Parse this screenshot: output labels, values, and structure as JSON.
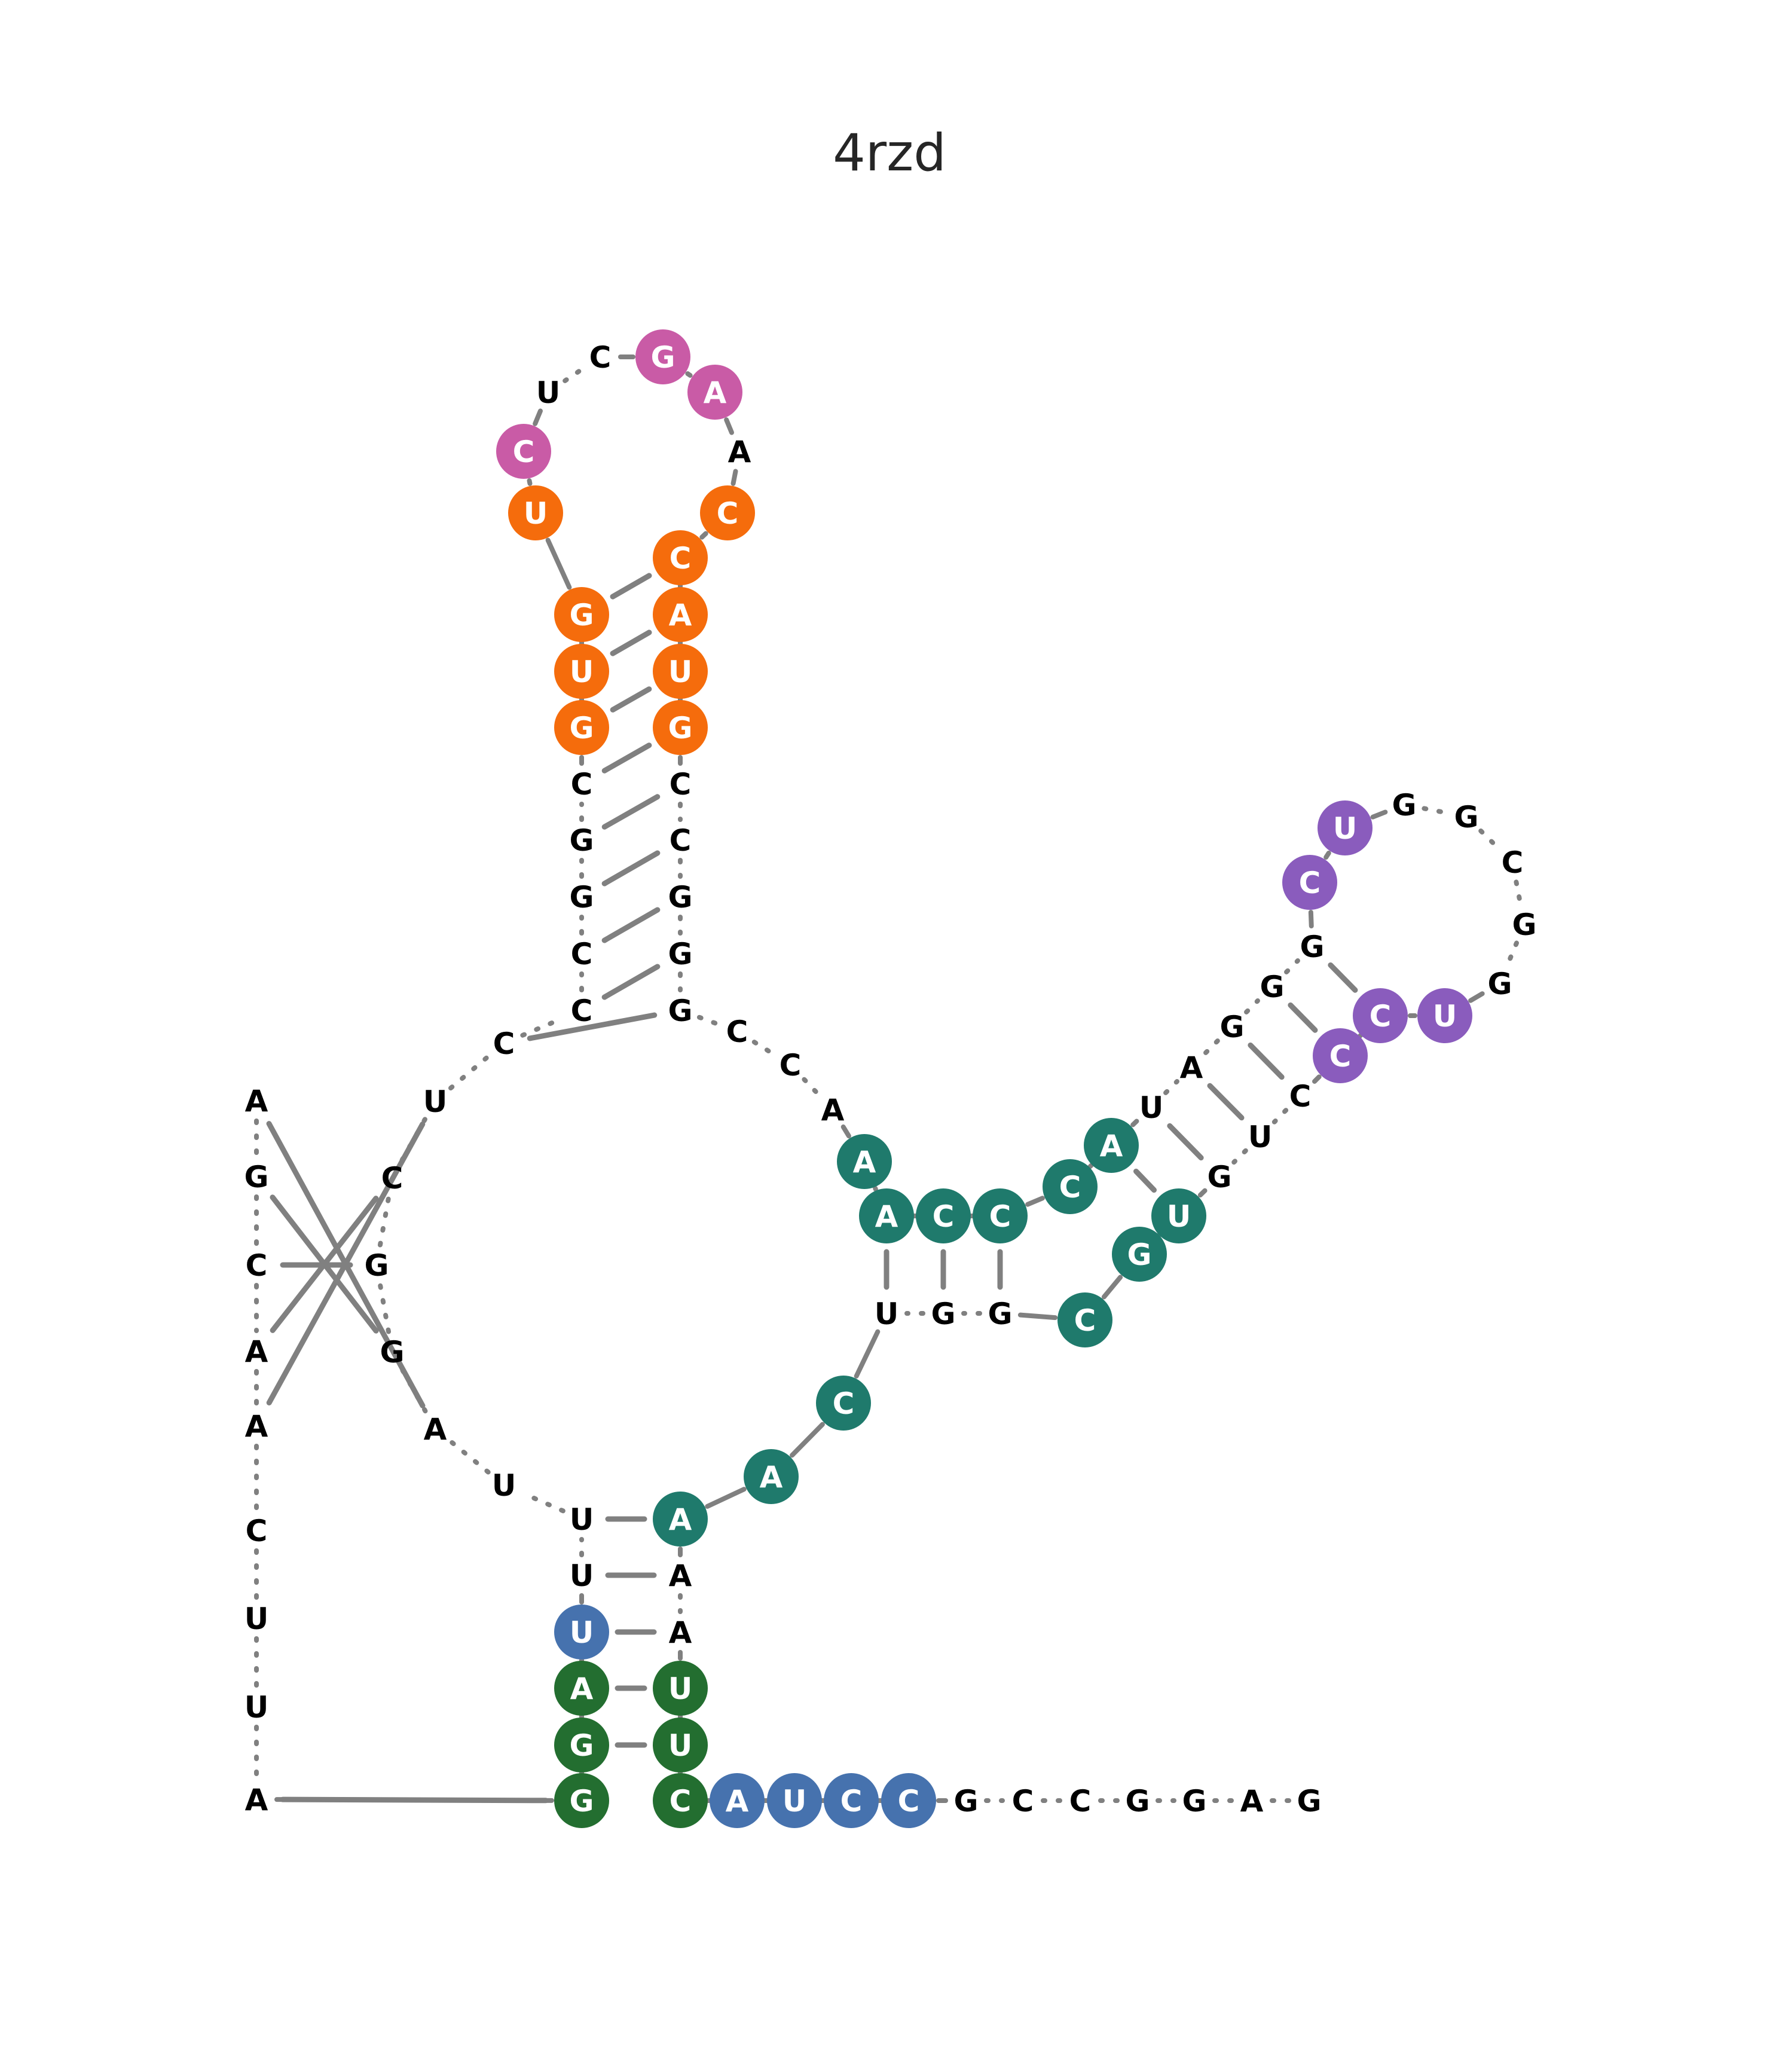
{
  "title": "4rzd",
  "colors": {
    "backbone": "#808080",
    "pair": "#808080",
    "label_plain": "#000000",
    "label_on_circle": "#ffffff"
  },
  "nucleotides": [
    {
      "id": 1,
      "base": "A",
      "color": null
    },
    {
      "id": 2,
      "base": "G",
      "color": null
    },
    {
      "id": 3,
      "base": "C",
      "color": null
    },
    {
      "id": 4,
      "base": "A",
      "color": null
    },
    {
      "id": 5,
      "base": "A",
      "color": null
    },
    {
      "id": 6,
      "base": "C",
      "color": null
    },
    {
      "id": 7,
      "base": "U",
      "color": null
    },
    {
      "id": 8,
      "base": "U",
      "color": null
    },
    {
      "id": 9,
      "base": "A",
      "color": null
    },
    {
      "id": 10,
      "base": "G",
      "color": "#236e30"
    },
    {
      "id": 11,
      "base": "G",
      "color": "#236e30"
    },
    {
      "id": 12,
      "base": "A",
      "color": "#236e30"
    },
    {
      "id": 13,
      "base": "U",
      "color": "#4672ae"
    },
    {
      "id": 14,
      "base": "U",
      "color": null
    },
    {
      "id": 15,
      "base": "U",
      "color": null
    },
    {
      "id": 16,
      "base": "U",
      "color": null
    },
    {
      "id": 17,
      "base": "A",
      "color": null
    },
    {
      "id": 18,
      "base": "G",
      "color": null
    },
    {
      "id": 19,
      "base": "G",
      "color": null
    },
    {
      "id": 20,
      "base": "C",
      "color": null
    },
    {
      "id": 21,
      "base": "U",
      "color": null
    },
    {
      "id": 22,
      "base": "C",
      "color": null
    },
    {
      "id": 23,
      "base": "C",
      "color": null
    },
    {
      "id": 24,
      "base": "C",
      "color": null
    },
    {
      "id": 25,
      "base": "G",
      "color": null
    },
    {
      "id": 26,
      "base": "G",
      "color": null
    },
    {
      "id": 27,
      "base": "C",
      "color": null
    },
    {
      "id": 28,
      "base": "G",
      "color": "#f56c0c"
    },
    {
      "id": 29,
      "base": "U",
      "color": "#f56c0c"
    },
    {
      "id": 30,
      "base": "G",
      "color": "#f56c0c"
    },
    {
      "id": 31,
      "base": "U",
      "color": "#f56c0c"
    },
    {
      "id": 32,
      "base": "C",
      "color": "#c95ba6"
    },
    {
      "id": 33,
      "base": "U",
      "color": null
    },
    {
      "id": 34,
      "base": "C",
      "color": null
    },
    {
      "id": 35,
      "base": "G",
      "color": "#c95ba6"
    },
    {
      "id": 36,
      "base": "A",
      "color": "#c95ba6"
    },
    {
      "id": 37,
      "base": "A",
      "color": null
    },
    {
      "id": 38,
      "base": "C",
      "color": "#f56c0c"
    },
    {
      "id": 39,
      "base": "C",
      "color": "#f56c0c"
    },
    {
      "id": 40,
      "base": "A",
      "color": "#f56c0c"
    },
    {
      "id": 41,
      "base": "U",
      "color": "#f56c0c"
    },
    {
      "id": 42,
      "base": "G",
      "color": "#f56c0c"
    },
    {
      "id": 43,
      "base": "C",
      "color": null
    },
    {
      "id": 44,
      "base": "C",
      "color": null
    },
    {
      "id": 45,
      "base": "G",
      "color": null
    },
    {
      "id": 46,
      "base": "G",
      "color": null
    },
    {
      "id": 47,
      "base": "G",
      "color": null
    },
    {
      "id": 48,
      "base": "C",
      "color": null
    },
    {
      "id": 49,
      "base": "C",
      "color": null
    },
    {
      "id": 50,
      "base": "A",
      "color": null
    },
    {
      "id": 51,
      "base": "A",
      "color": "#1f7a6c"
    },
    {
      "id": 52,
      "base": "A",
      "color": "#1f7a6c"
    },
    {
      "id": 53,
      "base": "C",
      "color": "#1f7a6c"
    },
    {
      "id": 54,
      "base": "C",
      "color": "#1f7a6c"
    },
    {
      "id": 55,
      "base": "C",
      "color": "#1f7a6c"
    },
    {
      "id": 56,
      "base": "A",
      "color": "#1f7a6c"
    },
    {
      "id": 57,
      "base": "U",
      "color": null
    },
    {
      "id": 58,
      "base": "A",
      "color": null
    },
    {
      "id": 59,
      "base": "G",
      "color": null
    },
    {
      "id": 60,
      "base": "G",
      "color": null
    },
    {
      "id": 61,
      "base": "G",
      "color": null
    },
    {
      "id": 62,
      "base": "C",
      "color": "#8a5cbd"
    },
    {
      "id": 63,
      "base": "U",
      "color": "#8a5cbd"
    },
    {
      "id": 64,
      "base": "G",
      "color": null
    },
    {
      "id": 65,
      "base": "G",
      "color": null
    },
    {
      "id": 66,
      "base": "C",
      "color": null
    },
    {
      "id": 67,
      "base": "G",
      "color": null
    },
    {
      "id": 68,
      "base": "G",
      "color": null
    },
    {
      "id": 69,
      "base": "U",
      "color": "#8a5cbd"
    },
    {
      "id": 70,
      "base": "C",
      "color": "#8a5cbd"
    },
    {
      "id": 71,
      "base": "C",
      "color": "#8a5cbd"
    },
    {
      "id": 72,
      "base": "C",
      "color": null
    },
    {
      "id": 73,
      "base": "U",
      "color": null
    },
    {
      "id": 74,
      "base": "G",
      "color": null
    },
    {
      "id": 75,
      "base": "U",
      "color": "#1f7a6c"
    },
    {
      "id": 76,
      "base": "G",
      "color": "#1f7a6c"
    },
    {
      "id": 77,
      "base": "C",
      "color": "#1f7a6c"
    },
    {
      "id": 78,
      "base": "G",
      "color": null
    },
    {
      "id": 79,
      "base": "G",
      "color": null
    },
    {
      "id": 80,
      "base": "U",
      "color": null
    },
    {
      "id": 81,
      "base": "C",
      "color": "#1f7a6c"
    },
    {
      "id": 82,
      "base": "A",
      "color": "#1f7a6c"
    },
    {
      "id": 83,
      "base": "A",
      "color": "#1f7a6c"
    },
    {
      "id": 84,
      "base": "A",
      "color": null
    },
    {
      "id": 85,
      "base": "A",
      "color": null
    },
    {
      "id": 86,
      "base": "U",
      "color": "#236e30"
    },
    {
      "id": 87,
      "base": "U",
      "color": "#236e30"
    },
    {
      "id": 88,
      "base": "C",
      "color": "#236e30"
    },
    {
      "id": 89,
      "base": "A",
      "color": "#4672ae"
    },
    {
      "id": 90,
      "base": "U",
      "color": "#4672ae"
    },
    {
      "id": 91,
      "base": "C",
      "color": "#4672ae"
    },
    {
      "id": 92,
      "base": "C",
      "color": "#4672ae"
    },
    {
      "id": 93,
      "base": "G",
      "color": null
    },
    {
      "id": 94,
      "base": "C",
      "color": null
    },
    {
      "id": 95,
      "base": "C",
      "color": null
    },
    {
      "id": 96,
      "base": "G",
      "color": null
    },
    {
      "id": 97,
      "base": "G",
      "color": null
    },
    {
      "id": 98,
      "base": "A",
      "color": null
    },
    {
      "id": 99,
      "base": "G",
      "color": null
    }
  ],
  "pairs": [
    [
      1,
      17
    ],
    [
      2,
      18
    ],
    [
      3,
      19
    ],
    [
      4,
      20
    ],
    [
      5,
      21
    ],
    [
      9,
      10
    ],
    [
      11,
      87
    ],
    [
      12,
      86
    ],
    [
      13,
      85
    ],
    [
      14,
      84
    ],
    [
      15,
      83
    ],
    [
      22,
      47
    ],
    [
      23,
      46
    ],
    [
      24,
      45
    ],
    [
      25,
      44
    ],
    [
      26,
      43
    ],
    [
      27,
      42
    ],
    [
      28,
      41
    ],
    [
      29,
      40
    ],
    [
      30,
      39
    ],
    [
      52,
      80
    ],
    [
      53,
      79
    ],
    [
      54,
      78
    ],
    [
      56,
      75
    ],
    [
      57,
      74
    ],
    [
      58,
      73
    ],
    [
      59,
      72
    ],
    [
      60,
      71
    ],
    [
      61,
      70
    ]
  ]
}
